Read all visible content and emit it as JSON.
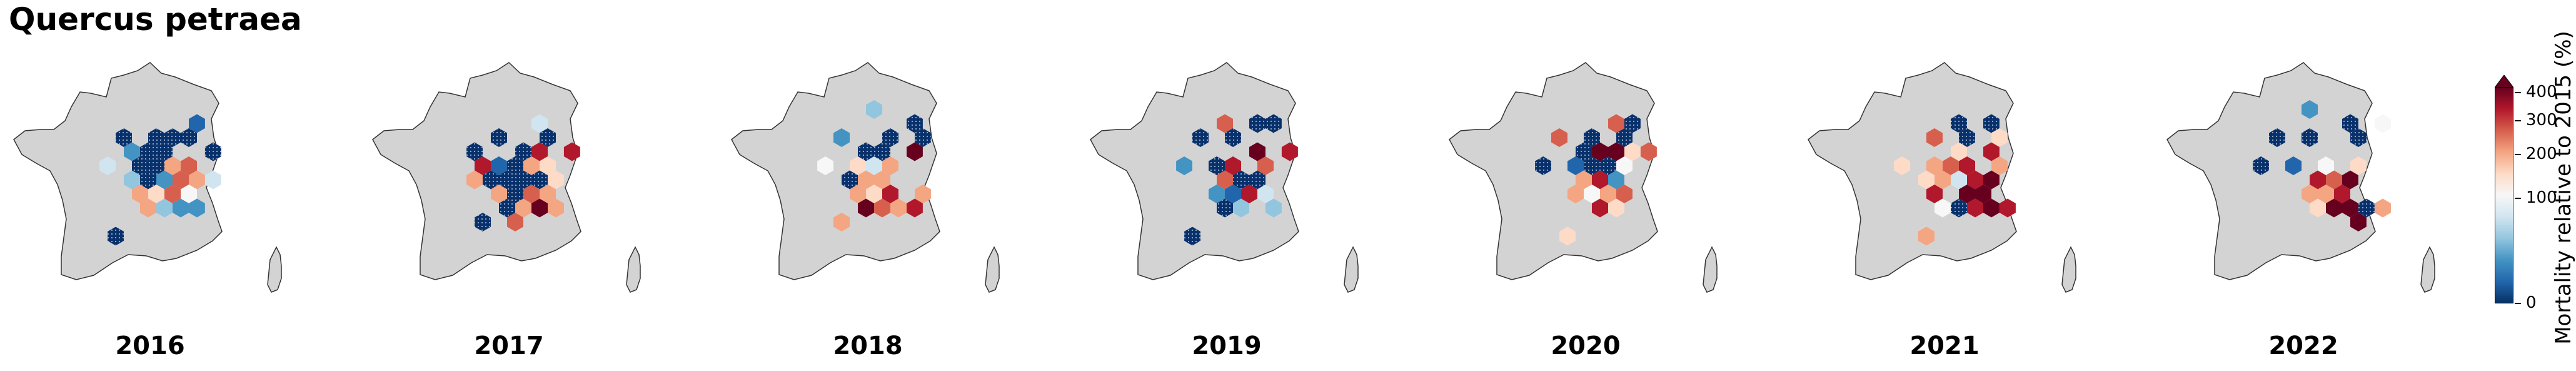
{
  "title": "Quercus petraea",
  "colorbar": {
    "label": "Mortality relative to 2015 (%)",
    "ticks": [
      "400",
      "300",
      "200",
      "100",
      "0"
    ],
    "tick_values": [
      400,
      300,
      200,
      100,
      0
    ],
    "max": 420,
    "extend": "max",
    "colormap": [
      "#053061",
      "#2166ac",
      "#4393c3",
      "#92c5de",
      "#d1e5f0",
      "#f7f7f7",
      "#fddbc7",
      "#f4a582",
      "#d6604d",
      "#b2182b",
      "#67001f"
    ]
  },
  "map_colors": {
    "land": "#d3d3d3",
    "border": "#333333",
    "hatched_dot": "#9ab0cc"
  },
  "panels": [
    {
      "year": "2016",
      "cells": [
        [
          0,
          2,
          "#08306b"
        ],
        [
          2,
          1,
          "#2166ac"
        ],
        [
          -2,
          2,
          "#08306b"
        ],
        [
          -1,
          3,
          "#08306b"
        ],
        [
          1,
          2,
          "#08306b"
        ],
        [
          2,
          2,
          "#08306b"
        ],
        [
          -2,
          3,
          "#4393c3"
        ],
        [
          0,
          3,
          "#08306b"
        ],
        [
          3,
          3,
          "#08306b"
        ],
        [
          -3,
          4,
          "#d1e5f0"
        ],
        [
          -1,
          4,
          "#08306b"
        ],
        [
          0,
          4,
          "#08306b"
        ],
        [
          1,
          4,
          "#f4a582"
        ],
        [
          2,
          4,
          "#d6604d"
        ],
        [
          -2,
          5,
          "#92c5de"
        ],
        [
          -1,
          5,
          "#08306b"
        ],
        [
          0,
          5,
          "#4393c3"
        ],
        [
          1,
          5,
          "#d6604d"
        ],
        [
          2,
          5,
          "#f4a582"
        ],
        [
          3,
          5,
          "#d1e5f0"
        ],
        [
          -1,
          6,
          "#f4a582"
        ],
        [
          0,
          6,
          "#fddbc7"
        ],
        [
          1,
          6,
          "#d6604d"
        ],
        [
          2,
          6,
          "#f7f7f7"
        ],
        [
          -1,
          7,
          "#f4a582"
        ],
        [
          0,
          7,
          "#92c5de"
        ],
        [
          1,
          7,
          "#4393c3"
        ],
        [
          2,
          7,
          "#4393c3"
        ],
        [
          -3,
          9,
          "#08306b"
        ]
      ]
    },
    {
      "year": "2017",
      "cells": [
        [
          1,
          1,
          "#d1e5f0"
        ],
        [
          -1,
          2,
          "#08306b"
        ],
        [
          2,
          2,
          "#08306b"
        ],
        [
          -3,
          3,
          "#08306b"
        ],
        [
          0,
          3,
          "#08306b"
        ],
        [
          1,
          3,
          "#b2182b"
        ],
        [
          3,
          3,
          "#b2182b"
        ],
        [
          -2,
          4,
          "#b2182b"
        ],
        [
          -1,
          4,
          "#2166ac"
        ],
        [
          0,
          4,
          "#08306b"
        ],
        [
          1,
          4,
          "#f4a582"
        ],
        [
          2,
          4,
          "#fddbc7"
        ],
        [
          -3,
          5,
          "#f4a582"
        ],
        [
          -2,
          5,
          "#08306b"
        ],
        [
          -1,
          5,
          "#08306b"
        ],
        [
          0,
          5,
          "#08306b"
        ],
        [
          1,
          5,
          "#08306b"
        ],
        [
          2,
          5,
          "#fddbc7"
        ],
        [
          -1,
          6,
          "#f4a582"
        ],
        [
          0,
          6,
          "#08306b"
        ],
        [
          1,
          6,
          "#d6604d"
        ],
        [
          2,
          6,
          "#f4a582"
        ],
        [
          -1,
          7,
          "#08306b"
        ],
        [
          0,
          7,
          "#f4a582"
        ],
        [
          1,
          7,
          "#67001f"
        ],
        [
          2,
          7,
          "#f4a582"
        ],
        [
          -2,
          8,
          "#08306b"
        ],
        [
          0,
          8,
          "#d6604d"
        ]
      ]
    },
    {
      "year": "2018",
      "cells": [
        [
          0,
          0,
          "#92c5de"
        ],
        [
          2,
          1,
          "#08306b"
        ],
        [
          -2,
          2,
          "#4393c3"
        ],
        [
          1,
          2,
          "#08306b"
        ],
        [
          3,
          2,
          "#08306b"
        ],
        [
          -1,
          3,
          "#08306b"
        ],
        [
          0,
          3,
          "#08306b"
        ],
        [
          2,
          3,
          "#67001f"
        ],
        [
          -3,
          4,
          "#f7f7f7"
        ],
        [
          -1,
          4,
          "#fddbc7"
        ],
        [
          0,
          4,
          "#d1e5f0"
        ],
        [
          1,
          4,
          "#f4a582"
        ],
        [
          -2,
          5,
          "#08306b"
        ],
        [
          -1,
          5,
          "#f4a582"
        ],
        [
          0,
          5,
          "#f4a582"
        ],
        [
          -1,
          6,
          "#f4a582"
        ],
        [
          0,
          6,
          "#fddbc7"
        ],
        [
          1,
          6,
          "#b2182b"
        ],
        [
          3,
          6,
          "#f4a582"
        ],
        [
          -1,
          7,
          "#67001f"
        ],
        [
          0,
          7,
          "#d6604d"
        ],
        [
          1,
          7,
          "#f4a582"
        ],
        [
          2,
          7,
          "#b2182b"
        ],
        [
          -2,
          8,
          "#f4a582"
        ]
      ]
    },
    {
      "year": "2019",
      "cells": [
        [
          -1,
          1,
          "#d6604d"
        ],
        [
          1,
          1,
          "#08306b"
        ],
        [
          2,
          1,
          "#08306b"
        ],
        [
          -2,
          2,
          "#08306b"
        ],
        [
          0,
          2,
          "#08306b"
        ],
        [
          1,
          3,
          "#67001f"
        ],
        [
          3,
          3,
          "#b2182b"
        ],
        [
          -3,
          4,
          "#4393c3"
        ],
        [
          -1,
          4,
          "#08306b"
        ],
        [
          0,
          4,
          "#b2182b"
        ],
        [
          2,
          4,
          "#d6604d"
        ],
        [
          -1,
          5,
          "#d6604d"
        ],
        [
          0,
          5,
          "#08306b"
        ],
        [
          1,
          5,
          "#08306b"
        ],
        [
          -1,
          6,
          "#4393c3"
        ],
        [
          0,
          6,
          "#2166ac"
        ],
        [
          1,
          6,
          "#b2182b"
        ],
        [
          2,
          6,
          "#d1e5f0"
        ],
        [
          -1,
          7,
          "#08306b"
        ],
        [
          0,
          7,
          "#92c5de"
        ],
        [
          2,
          7,
          "#92c5de"
        ],
        [
          -3,
          9,
          "#08306b"
        ]
      ]
    },
    {
      "year": "2020",
      "cells": [
        [
          1,
          1,
          "#d6604d"
        ],
        [
          2,
          1,
          "#08306b"
        ],
        [
          -2,
          2,
          "#d6604d"
        ],
        [
          0,
          2,
          "#08306b"
        ],
        [
          2,
          2,
          "#08306b"
        ],
        [
          -1,
          3,
          "#08306b"
        ],
        [
          0,
          3,
          "#67001f"
        ],
        [
          1,
          3,
          "#67001f"
        ],
        [
          2,
          3,
          "#fddbc7"
        ],
        [
          3,
          3,
          "#d6604d"
        ],
        [
          -3,
          4,
          "#08306b"
        ],
        [
          -1,
          4,
          "#2166ac"
        ],
        [
          0,
          4,
          "#08306b"
        ],
        [
          1,
          4,
          "#08306b"
        ],
        [
          2,
          4,
          "#f7f7f7"
        ],
        [
          -1,
          5,
          "#f4a582"
        ],
        [
          0,
          5,
          "#b2182b"
        ],
        [
          1,
          5,
          "#4393c3"
        ],
        [
          -1,
          6,
          "#f4a582"
        ],
        [
          0,
          6,
          "#f7f7f7"
        ],
        [
          1,
          6,
          "#f4a582"
        ],
        [
          2,
          6,
          "#d6604d"
        ],
        [
          0,
          7,
          "#b2182b"
        ],
        [
          1,
          7,
          "#fddbc7"
        ],
        [
          -2,
          9,
          "#fddbc7"
        ]
      ]
    },
    {
      "year": "2021",
      "cells": [
        [
          0,
          1,
          "#08306b"
        ],
        [
          2,
          1,
          "#08306b"
        ],
        [
          -1,
          2,
          "#d6604d"
        ],
        [
          1,
          2,
          "#08306b"
        ],
        [
          3,
          2,
          "#fddbc7"
        ],
        [
          0,
          3,
          "#fddbc7"
        ],
        [
          2,
          3,
          "#b2182b"
        ],
        [
          -3,
          4,
          "#fddbc7"
        ],
        [
          -1,
          4,
          "#f4a582"
        ],
        [
          0,
          4,
          "#d6604d"
        ],
        [
          1,
          4,
          "#b2182b"
        ],
        [
          3,
          4,
          "#f4a582"
        ],
        [
          -2,
          5,
          "#fddbc7"
        ],
        [
          -1,
          5,
          "#f4a582"
        ],
        [
          0,
          5,
          "#d1e5f0"
        ],
        [
          1,
          5,
          "#b2182b"
        ],
        [
          2,
          5,
          "#67001f"
        ],
        [
          -1,
          6,
          "#b2182b"
        ],
        [
          1,
          6,
          "#67001f"
        ],
        [
          2,
          6,
          "#67001f"
        ],
        [
          -1,
          7,
          "#f7f7f7"
        ],
        [
          0,
          7,
          "#08306b"
        ],
        [
          1,
          7,
          "#b2182b"
        ],
        [
          2,
          7,
          "#67001f"
        ],
        [
          3,
          7,
          "#b2182b"
        ],
        [
          -2,
          9,
          "#f4a582"
        ]
      ]
    },
    {
      "year": "2022",
      "cells": [
        [
          0,
          0,
          "#4393c3"
        ],
        [
          2,
          1,
          "#08306b"
        ],
        [
          4,
          1,
          "#f7f7f7"
        ],
        [
          -2,
          2,
          "#08306b"
        ],
        [
          0,
          2,
          "#08306b"
        ],
        [
          3,
          2,
          "#08306b"
        ],
        [
          -3,
          4,
          "#08306b"
        ],
        [
          -1,
          4,
          "#2166ac"
        ],
        [
          1,
          4,
          "#f7f7f7"
        ],
        [
          3,
          4,
          "#fddbc7"
        ],
        [
          0,
          5,
          "#b2182b"
        ],
        [
          1,
          5,
          "#d6604d"
        ],
        [
          2,
          5,
          "#67001f"
        ],
        [
          0,
          6,
          "#f4a582"
        ],
        [
          1,
          6,
          "#f4a582"
        ],
        [
          2,
          6,
          "#b2182b"
        ],
        [
          0,
          7,
          "#fddbc7"
        ],
        [
          1,
          7,
          "#67001f"
        ],
        [
          2,
          7,
          "#67001f"
        ],
        [
          3,
          7,
          "#08306b"
        ],
        [
          4,
          7,
          "#f4a582"
        ],
        [
          3,
          8,
          "#67001f"
        ]
      ]
    }
  ]
}
